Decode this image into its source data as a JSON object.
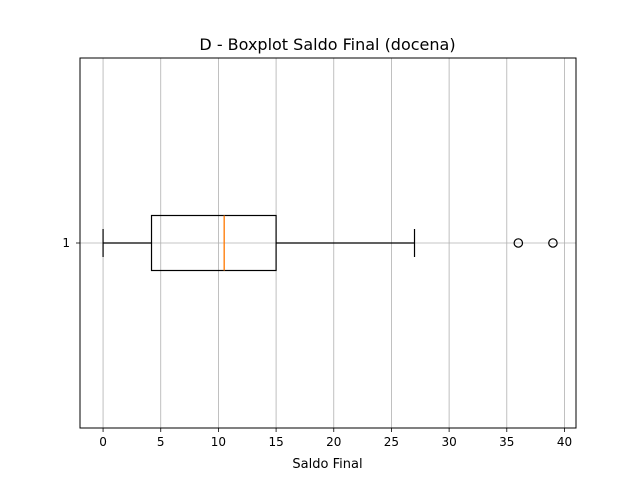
{
  "chart_data": {
    "type": "box",
    "orientation": "horizontal",
    "title": "D - Boxplot Saldo Final (docena)",
    "xlabel": "Saldo Final",
    "ylabel": "",
    "xlim": [
      -2,
      41
    ],
    "xticks": [
      0,
      5,
      10,
      15,
      20,
      25,
      30,
      35,
      40
    ],
    "yticks": [
      "1"
    ],
    "grid": true,
    "boxes": [
      {
        "label": "1",
        "whisker_low": 0,
        "q1": 4.2,
        "median": 10.5,
        "q3": 15,
        "whisker_high": 27,
        "outliers": [
          36,
          39
        ]
      }
    ],
    "colors": {
      "box": "#000000",
      "median": "#ff7f0e",
      "grid": "#b0b0b0",
      "axes": "#000000"
    }
  }
}
